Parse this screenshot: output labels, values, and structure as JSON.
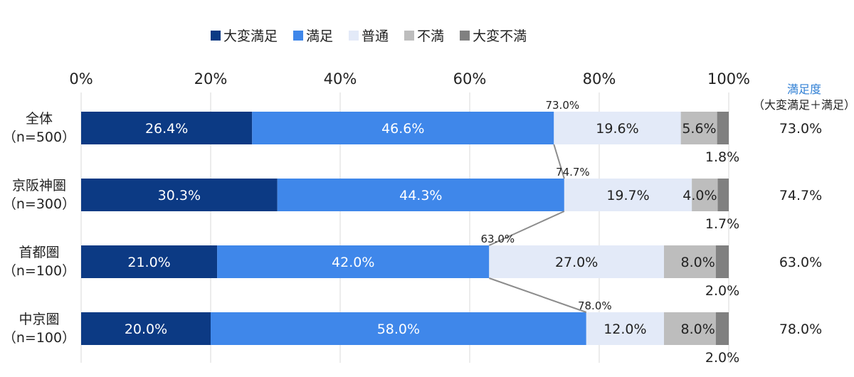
{
  "legend": [
    {
      "label": "大変満足",
      "color": "#0c3a84"
    },
    {
      "label": "満足",
      "color": "#3f87ea"
    },
    {
      "label": "普通",
      "color": "#e3eaf8"
    },
    {
      "label": "不満",
      "color": "#bdbdbd"
    },
    {
      "label": "大変不満",
      "color": "#808080"
    }
  ],
  "side_title": {
    "line1": "満足度",
    "line2": "（大変満足＋満足）"
  },
  "rows": [
    {
      "name": "全体",
      "n": "（n=500）",
      "satisfaction": "73.0%"
    },
    {
      "name": "京阪神圏",
      "n": "（n=300）",
      "satisfaction": "74.7%"
    },
    {
      "name": "首都圏",
      "n": "（n=100）",
      "satisfaction": "63.0%"
    },
    {
      "name": "中京圏",
      "n": "（n=100）",
      "satisfaction": "78.0%"
    }
  ],
  "chart_data": {
    "type": "bar",
    "orientation": "horizontal",
    "stacked": true,
    "categories": [
      "全体（n=500）",
      "京阪神圏（n=300）",
      "首都圏（n=100）",
      "中京圏（n=100）"
    ],
    "series": [
      {
        "name": "大変満足",
        "values": [
          26.4,
          30.3,
          21.0,
          20.0
        ],
        "color": "#0c3a84",
        "label_color": "#ffffff"
      },
      {
        "name": "満足",
        "values": [
          46.6,
          44.3,
          42.0,
          58.0
        ],
        "color": "#3f87ea",
        "label_color": "#ffffff"
      },
      {
        "name": "普通",
        "values": [
          19.6,
          19.7,
          27.0,
          12.0
        ],
        "color": "#e3eaf8",
        "label_color": "#222222"
      },
      {
        "name": "不満",
        "values": [
          5.6,
          4.0,
          8.0,
          8.0
        ],
        "color": "#bdbdbd",
        "label_color": "#222222"
      },
      {
        "name": "大変不満",
        "values": [
          1.8,
          1.7,
          2.0,
          2.0
        ],
        "color": "#808080",
        "label_color": "#222222"
      }
    ],
    "xlim": [
      0,
      100
    ],
    "xticks": [
      "0%",
      "20%",
      "40%",
      "60%",
      "80%",
      "100%"
    ],
    "connector_labels": [
      "73.0%",
      "74.7%",
      "63.0%",
      "78.0%"
    ],
    "grid": true,
    "legend_position": "top"
  }
}
